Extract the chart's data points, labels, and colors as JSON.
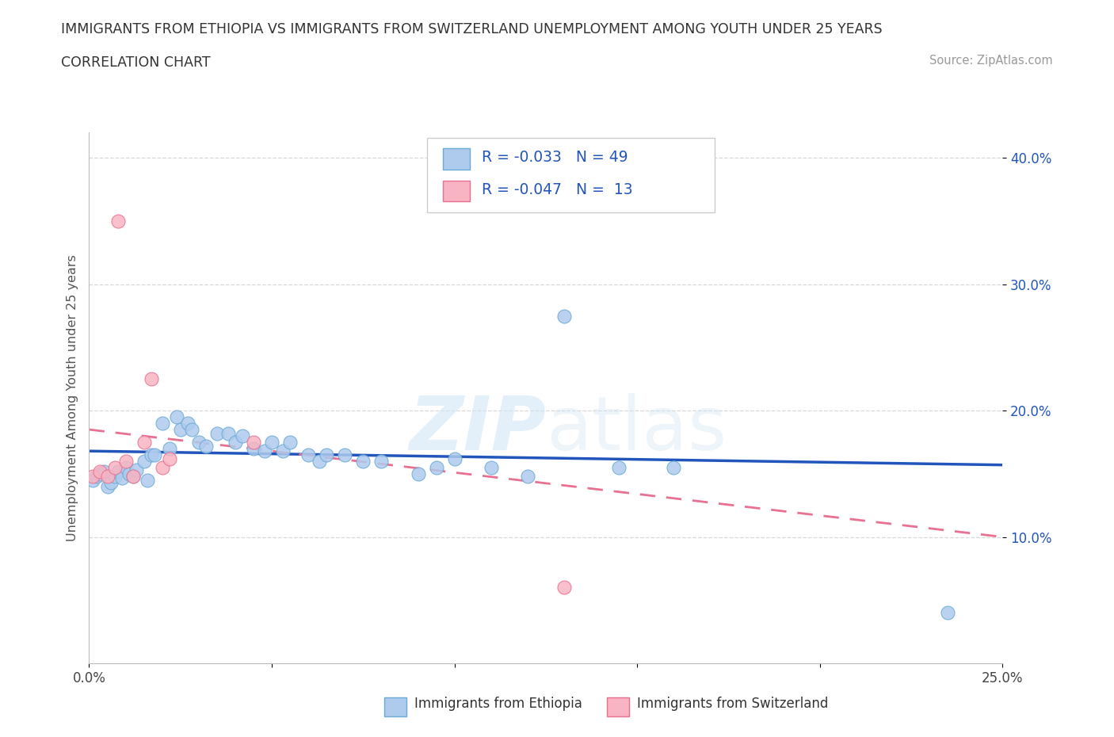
{
  "title_line1": "IMMIGRANTS FROM ETHIOPIA VS IMMIGRANTS FROM SWITZERLAND UNEMPLOYMENT AMONG YOUTH UNDER 25 YEARS",
  "title_line2": "CORRELATION CHART",
  "source_text": "Source: ZipAtlas.com",
  "ylabel": "Unemployment Among Youth under 25 years",
  "xlim": [
    0.0,
    0.25
  ],
  "ylim": [
    0.0,
    0.42
  ],
  "xtick_vals": [
    0.0,
    0.05,
    0.1,
    0.15,
    0.2,
    0.25
  ],
  "xtick_labels": [
    "0.0%",
    "",
    "",
    "",
    "",
    "25.0%"
  ],
  "ytick_vals": [
    0.1,
    0.2,
    0.3,
    0.4
  ],
  "ytick_labels": [
    "10.0%",
    "20.0%",
    "30.0%",
    "40.0%"
  ],
  "ethiopia_color": "#aecbee",
  "ethiopia_edge": "#6aaad4",
  "switzerland_color": "#f8b4c2",
  "switzerland_edge": "#e87090",
  "trend_ethiopia_color": "#2255bb",
  "trend_switzerland_color": "#e87090",
  "r_ethiopia": -0.033,
  "n_ethiopia": 49,
  "r_switzerland": -0.047,
  "n_switzerland": 13,
  "ethiopia_x": [
    0.001,
    0.002,
    0.003,
    0.004,
    0.005,
    0.006,
    0.007,
    0.008,
    0.009,
    0.01,
    0.011,
    0.012,
    0.013,
    0.015,
    0.016,
    0.017,
    0.018,
    0.02,
    0.022,
    0.024,
    0.025,
    0.027,
    0.028,
    0.03,
    0.032,
    0.035,
    0.038,
    0.04,
    0.042,
    0.045,
    0.048,
    0.05,
    0.053,
    0.055,
    0.06,
    0.063,
    0.065,
    0.07,
    0.075,
    0.08,
    0.09,
    0.095,
    0.1,
    0.11,
    0.12,
    0.13,
    0.145,
    0.16,
    0.235
  ],
  "ethiopia_y": [
    0.145,
    0.148,
    0.15,
    0.152,
    0.14,
    0.143,
    0.148,
    0.152,
    0.147,
    0.155,
    0.15,
    0.148,
    0.153,
    0.16,
    0.145,
    0.165,
    0.165,
    0.19,
    0.17,
    0.195,
    0.185,
    0.19,
    0.185,
    0.175,
    0.172,
    0.182,
    0.182,
    0.175,
    0.18,
    0.17,
    0.168,
    0.175,
    0.168,
    0.175,
    0.165,
    0.16,
    0.165,
    0.165,
    0.16,
    0.16,
    0.15,
    0.155,
    0.162,
    0.155,
    0.148,
    0.275,
    0.155,
    0.155,
    0.04
  ],
  "switzerland_x": [
    0.001,
    0.003,
    0.005,
    0.007,
    0.008,
    0.01,
    0.012,
    0.015,
    0.017,
    0.02,
    0.022,
    0.045,
    0.13
  ],
  "switzerland_y": [
    0.148,
    0.152,
    0.148,
    0.155,
    0.35,
    0.16,
    0.148,
    0.175,
    0.225,
    0.155,
    0.162,
    0.175,
    0.06
  ],
  "watermark_top": "ZIP",
  "watermark_bot": "atlas",
  "background_color": "#ffffff",
  "grid_color": "#d8d8d8"
}
